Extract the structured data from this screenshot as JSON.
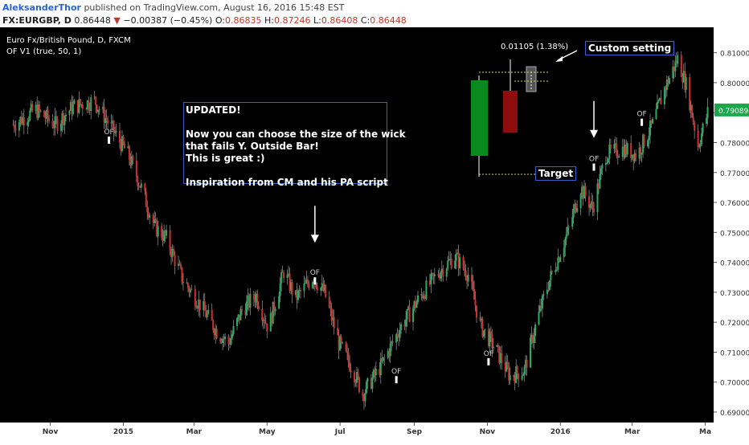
{
  "header": {
    "author": "AleksanderThor",
    "published": "published on TradingView.com, August 16, 2016 15:48 EST",
    "symbol": "FX:EURGBP, D",
    "last": "0.86448",
    "change": "−0.00387 (−0.45%)",
    "o_label": "O:",
    "o": "0.86835",
    "h_label": "H:",
    "h": "0.87246",
    "l_label": "L:",
    "l": "0.86408",
    "c_label": "C:",
    "c": "0.86448"
  },
  "legend": {
    "instrument": "Euro Fx/British Pound, D, FXCM",
    "indicator": "OF V1 (true, 50, 1)"
  },
  "annotations": {
    "info_lines": [
      "UPDATED!",
      "",
      "Now you can choose the size of the wick",
      "that fails Y. Outside Bar!",
      "This is great :)",
      "",
      "Inspiration from CM and his PA script"
    ],
    "measure": "0.01105 (1.38%)",
    "custom_setting": "Custom setting",
    "target": "Target",
    "of_marker": "OF"
  },
  "price_label": "0.79089",
  "colors": {
    "background": "#000000",
    "up": "#27ae60",
    "down": "#d03030",
    "wick": "#c8c8c8",
    "label_bg": "#1aa84a",
    "box_border": "#3a5fcd"
  },
  "chart_data": {
    "type": "candlestick",
    "title": "Euro Fx/British Pound, D, FXCM",
    "xlabel": "",
    "ylabel": "",
    "ylim": [
      0.6865,
      0.8185
    ],
    "y_ticks": [
      "0.81000",
      "0.80000",
      "0.79000",
      "0.78000",
      "0.77000",
      "0.76000",
      "0.75000",
      "0.74000",
      "0.73000",
      "0.72000",
      "0.71000",
      "0.70000",
      "0.69000"
    ],
    "x_ticks": [
      "Nov",
      "2015",
      "Mar",
      "May",
      "Jul",
      "Sep",
      "Nov",
      "2016",
      "Mar",
      "Ma"
    ],
    "anchors": [
      [
        "2014-10-01",
        0.786
      ],
      [
        "2014-10-20",
        0.791
      ],
      [
        "2014-11-05",
        0.786
      ],
      [
        "2014-11-20",
        0.792
      ],
      [
        "2014-12-08",
        0.794
      ],
      [
        "2014-12-22",
        0.785
      ],
      [
        "2015-01-05",
        0.776
      ],
      [
        "2015-01-15",
        0.766
      ],
      [
        "2015-01-27",
        0.752
      ],
      [
        "2015-02-06",
        0.748
      ],
      [
        "2015-02-20",
        0.734
      ],
      [
        "2015-03-06",
        0.726
      ],
      [
        "2015-03-20",
        0.717
      ],
      [
        "2015-03-30",
        0.713
      ],
      [
        "2015-04-10",
        0.724
      ],
      [
        "2015-04-22",
        0.729
      ],
      [
        "2015-05-02",
        0.718
      ],
      [
        "2015-05-15",
        0.737
      ],
      [
        "2015-05-25",
        0.728
      ],
      [
        "2015-06-08",
        0.735
      ],
      [
        "2015-06-18",
        0.73
      ],
      [
        "2015-06-30",
        0.713
      ],
      [
        "2015-07-12",
        0.704
      ],
      [
        "2015-07-20",
        0.696
      ],
      [
        "2015-08-05",
        0.706
      ],
      [
        "2015-08-20",
        0.718
      ],
      [
        "2015-09-05",
        0.728
      ],
      [
        "2015-09-22",
        0.737
      ],
      [
        "2015-10-05",
        0.742
      ],
      [
        "2015-10-16",
        0.736
      ],
      [
        "2015-10-26",
        0.719
      ],
      [
        "2015-11-08",
        0.711
      ],
      [
        "2015-11-20",
        0.702
      ],
      [
        "2015-12-02",
        0.704
      ],
      [
        "2015-12-12",
        0.72
      ],
      [
        "2015-12-22",
        0.733
      ],
      [
        "2016-01-08",
        0.751
      ],
      [
        "2016-01-18",
        0.765
      ],
      [
        "2016-01-28",
        0.758
      ],
      [
        "2016-02-08",
        0.776
      ],
      [
        "2016-02-22",
        0.778
      ],
      [
        "2016-03-05",
        0.776
      ],
      [
        "2016-03-18",
        0.786
      ],
      [
        "2016-03-28",
        0.798
      ],
      [
        "2016-04-08",
        0.808
      ],
      [
        "2016-04-16",
        0.798
      ],
      [
        "2016-04-25",
        0.779
      ],
      [
        "2016-05-03",
        0.79
      ]
    ],
    "of_markers": [
      {
        "date": "2014-12-20",
        "price": 0.782
      },
      {
        "date": "2015-06-10",
        "price": 0.735
      },
      {
        "date": "2015-08-17",
        "price": 0.702
      },
      {
        "date": "2015-11-02",
        "price": 0.708
      },
      {
        "date": "2016-01-29",
        "price": 0.773
      },
      {
        "date": "2016-03-09",
        "price": 0.788
      }
    ],
    "arrows": [
      {
        "date": "2015-06-10",
        "price": 0.746
      },
      {
        "date": "2016-01-29",
        "price": 0.781
      }
    ]
  }
}
